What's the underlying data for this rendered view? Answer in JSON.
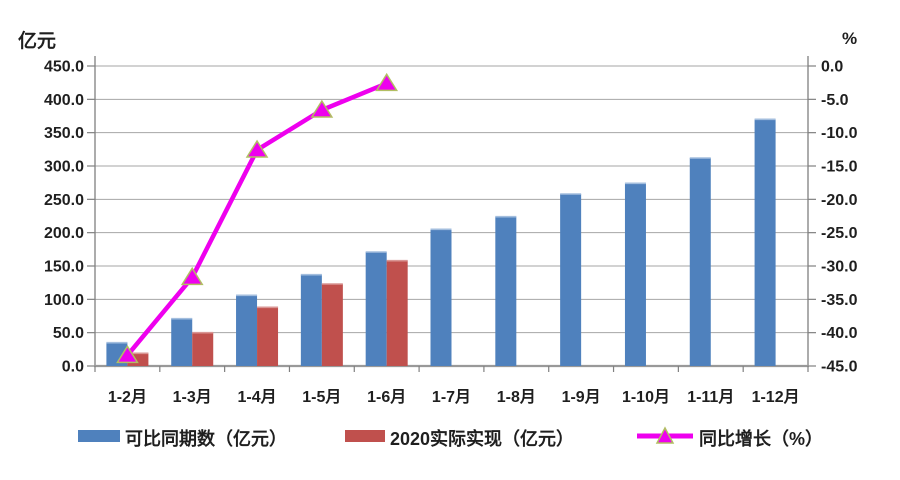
{
  "chart_data": {
    "type": "bar",
    "subtype": "combo-bar-line",
    "title": "",
    "categories": [
      "1-2月",
      "1-3月",
      "1-4月",
      "1-5月",
      "1-6月",
      "1-7月",
      "1-8月",
      "1-9月",
      "1-10月",
      "1-11月",
      "1-12月"
    ],
    "series": [
      {
        "name": "可比同期数（亿元）",
        "type": "bar",
        "axis": "left",
        "color": "#4F81BD",
        "highlight": "#A3BEDE",
        "values": [
          35,
          71,
          106,
          137,
          171,
          205,
          224,
          258,
          274,
          312,
          370
        ]
      },
      {
        "name": "2020实际实现（亿元）",
        "type": "bar",
        "axis": "left",
        "color": "#C0504D",
        "highlight": "#D99694",
        "values": [
          19,
          50,
          88,
          123,
          158,
          null,
          null,
          null,
          null,
          null,
          null
        ]
      },
      {
        "name": "同比增长（%）",
        "type": "line",
        "axis": "right",
        "color": "#EE00EE",
        "marker": "triangle",
        "marker_stroke": "#B2BE62",
        "values": [
          -43.4,
          -31.7,
          -12.6,
          -6.6,
          -2.6,
          null,
          null,
          null,
          null,
          null,
          null
        ]
      }
    ],
    "left_axis": {
      "title": "亿元",
      "min": 0,
      "max": 450,
      "step": 50,
      "tick_labels": [
        "450.0",
        "400.0",
        "350.0",
        "300.0",
        "250.0",
        "200.0",
        "150.0",
        "100.0",
        "50.0",
        "0.0"
      ]
    },
    "right_axis": {
      "title": "%",
      "min": -45,
      "max": 0,
      "step": 5,
      "tick_labels": [
        "0.0",
        "-5.0",
        "-10.0",
        "-15.0",
        "-20.0",
        "-25.0",
        "-30.0",
        "-35.0",
        "-40.0",
        "-45.0"
      ]
    },
    "grid": true,
    "legend_position": "bottom",
    "colors": {
      "gridline": "#A6A6A6",
      "axis": "#808080",
      "text": "#1F1F1F",
      "background": "#FFFFFF"
    }
  }
}
